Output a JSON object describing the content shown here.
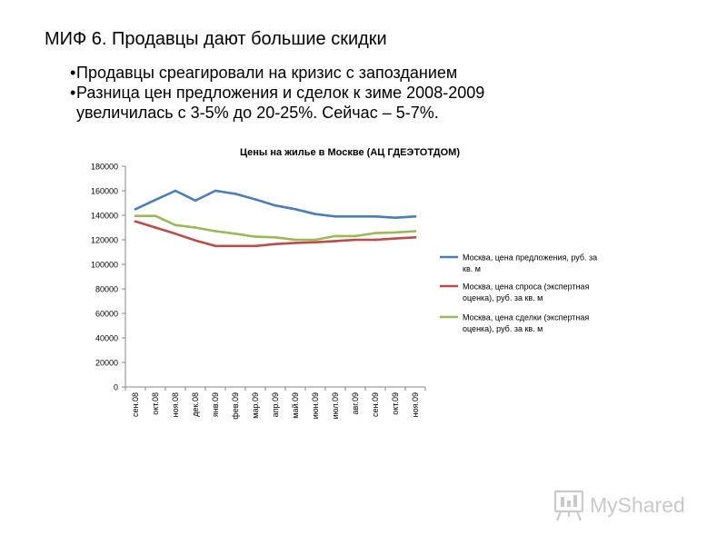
{
  "slide": {
    "title": "МИФ 6. Продавцы дают большие скидки",
    "bullets": [
      "Продавцы среагировали на кризис с запозданием",
      "Разница цен предложения и сделок к зиме 2008-2009 увеличилась с 3-5% до 20-25%. Сейчас – 5-7%."
    ],
    "bullet_glyph": "•"
  },
  "watermark": {
    "text": "MyShared",
    "icon": "presentation-board-icon"
  },
  "chart_data": {
    "type": "line",
    "title": "Цены на жилье в Москве (АЦ ГДЕЭТОТДОМ)",
    "xlabel": "",
    "ylabel": "",
    "categories": [
      "сен.08",
      "окт.08",
      "ноя.08",
      "дек.08",
      "янв.09",
      "фев.09",
      "мар.09",
      "апр.09",
      "май.09",
      "июн.09",
      "июл.09",
      "авг.09",
      "сен.09",
      "окт.09",
      "ноя.09"
    ],
    "ylim": [
      0,
      180000
    ],
    "yticks": [
      0,
      20000,
      40000,
      60000,
      80000,
      100000,
      120000,
      140000,
      160000,
      180000
    ],
    "grid": false,
    "legend": "right",
    "series": [
      {
        "name": "Москва, цена предложения, руб. за кв. м",
        "legend_lines": [
          "Москва, цена предложения, руб. за",
          "кв. м"
        ],
        "color": "#4a7ebb",
        "values": [
          145000,
          152500,
          160000,
          152000,
          160000,
          157500,
          153000,
          148000,
          145000,
          141000,
          139000,
          139000,
          139000,
          138000,
          139000
        ]
      },
      {
        "name": "Москва, цена спроса (экспертная оценка), руб. за кв. м",
        "legend_lines": [
          "Москва, цена спроса (экспертная",
          "оценка), руб. за кв. м"
        ],
        "color": "#be4b48",
        "values": [
          135000,
          130000,
          125000,
          119500,
          115000,
          115000,
          115000,
          116500,
          117500,
          118000,
          119000,
          120000,
          120000,
          121000,
          122000
        ]
      },
      {
        "name": "Москва, цена сделки (экспертная оценка), руб. за кв. м",
        "legend_lines": [
          "Москва, цена сделки (экспертная",
          "оценка), руб. за кв. м"
        ],
        "color": "#98b954",
        "values": [
          139500,
          139500,
          132000,
          130000,
          127000,
          125000,
          122500,
          122000,
          120000,
          120000,
          123000,
          123000,
          125500,
          126000,
          127000
        ]
      }
    ]
  }
}
